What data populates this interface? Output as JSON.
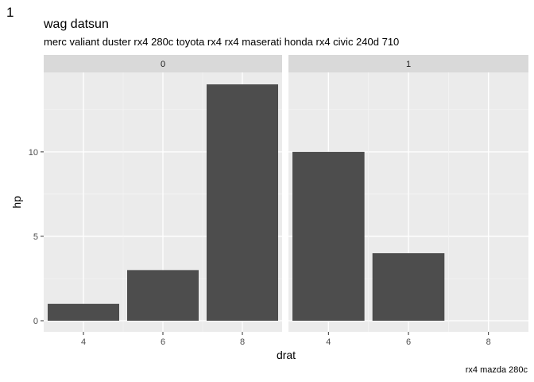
{
  "tag": "1",
  "chart_data": {
    "type": "bar",
    "title": "wag datsun",
    "subtitle": "merc valiant duster rx4 280c toyota rx4 rx4 maserati honda rx4 civic 240d 710",
    "caption": "rx4 mazda 280c",
    "xlabel": "drat",
    "ylabel": "hp",
    "x_ticks": [
      4,
      6,
      8
    ],
    "y_ticks": [
      0,
      5,
      10
    ],
    "xlim": [
      3,
      9
    ],
    "ylim": [
      0,
      14
    ],
    "bar_color": "#4d4d4d",
    "panel_color": "#ebebeb",
    "strip_color": "#d9d9d9",
    "facets": [
      {
        "label": "0",
        "bars": [
          {
            "x": 4,
            "value": 1
          },
          {
            "x": 6,
            "value": 3
          },
          {
            "x": 8,
            "value": 14
          }
        ]
      },
      {
        "label": "1",
        "bars": [
          {
            "x": 4,
            "value": 10
          },
          {
            "x": 6,
            "value": 4
          }
        ]
      }
    ]
  }
}
